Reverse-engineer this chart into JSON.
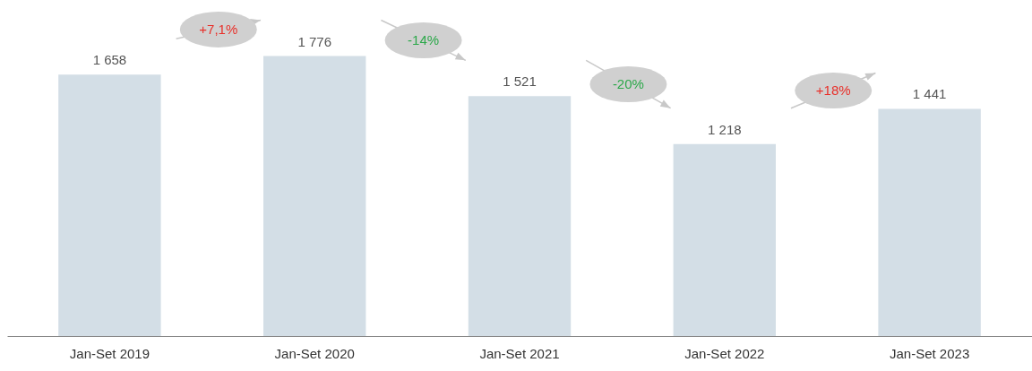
{
  "chart_data": {
    "type": "bar",
    "categories": [
      "Jan-Set 2019",
      "Jan-Set 2020",
      "Jan-Set 2021",
      "Jan-Set 2022",
      "Jan-Set 2023"
    ],
    "values": [
      1658,
      1776,
      1521,
      1218,
      1441
    ],
    "value_labels": [
      "1 658",
      "1 776",
      "1 521",
      "1 218",
      "1 441"
    ],
    "color": "#d3dee6",
    "annotations": [
      "+7,1%",
      "-14%",
      "-20%",
      "+18%"
    ]
  }
}
